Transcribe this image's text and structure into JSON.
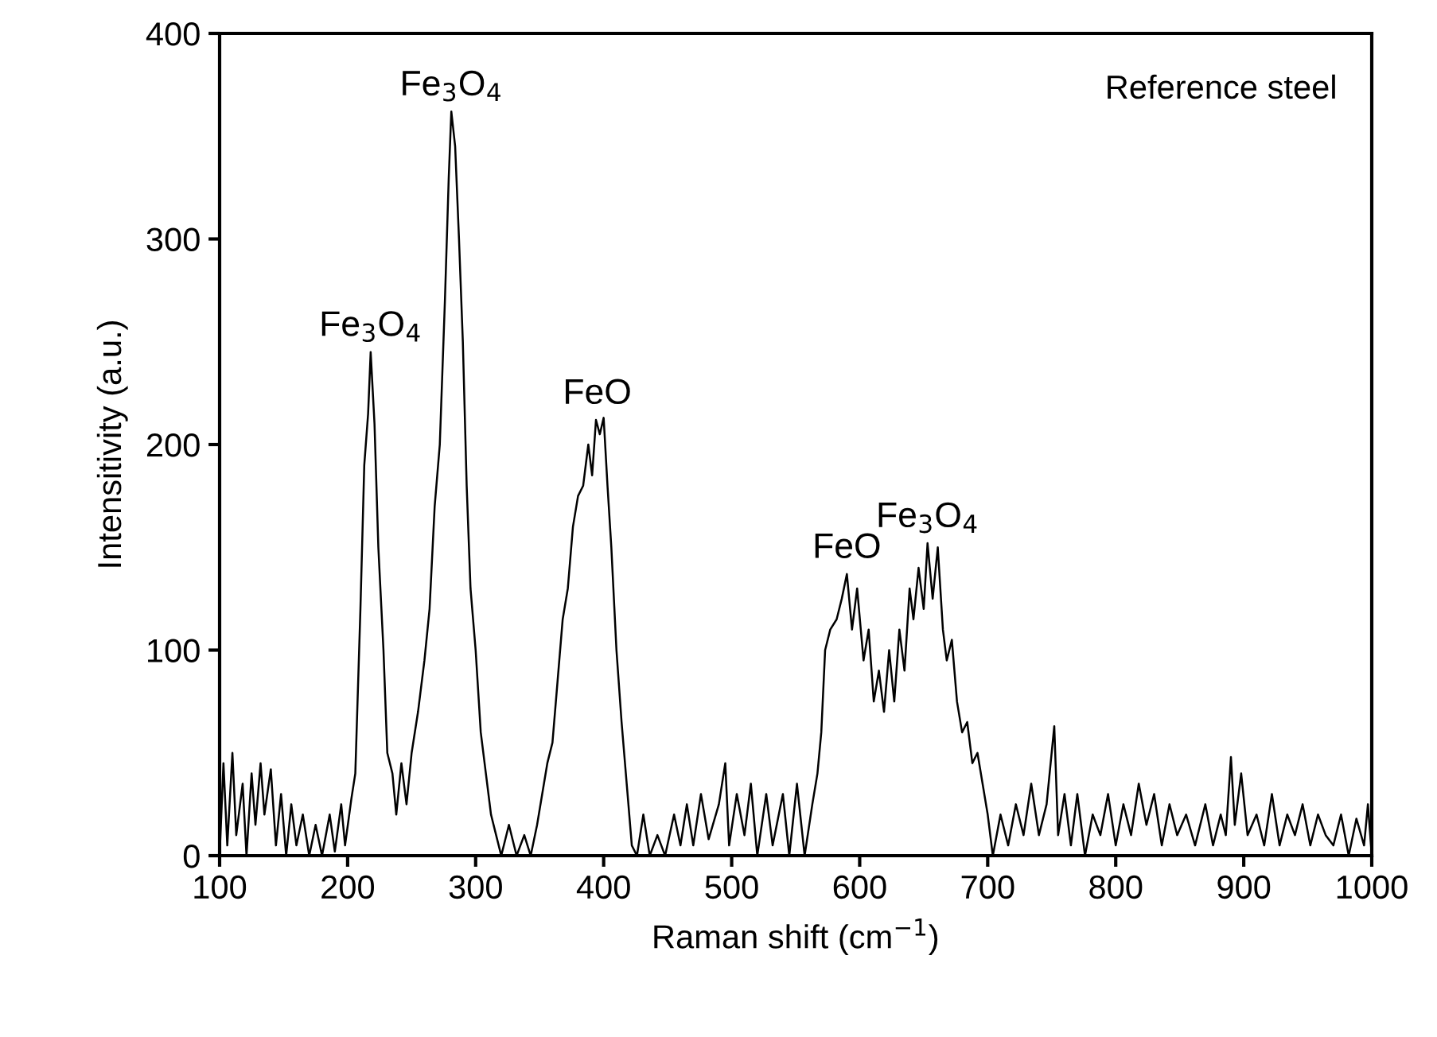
{
  "chart_data": {
    "type": "line",
    "xlabel": "Raman shift (cm$^{−1}$)",
    "ylabel": "Intensitivity (a.u.)",
    "xlim": [
      100,
      1000
    ],
    "ylim": [
      0,
      400
    ],
    "xticks": [
      100,
      200,
      300,
      400,
      500,
      600,
      700,
      800,
      900,
      1000
    ],
    "yticks": [
      0,
      100,
      200,
      300,
      400
    ],
    "grid": false,
    "legend": false,
    "marker": "none",
    "line_style": "solid",
    "annotations": [
      {
        "text": "Fe$_{3}$O$_{4}$",
        "x": 218,
        "y": 245
      },
      {
        "text": "Fe$_{3}$O$_{4}$",
        "x": 281,
        "y": 362
      },
      {
        "text": "FeO",
        "x": 395,
        "y": 212
      },
      {
        "text": "FeO",
        "x": 590,
        "y": 137
      },
      {
        "text": "Fe$_{3}$O$_{4}$",
        "x": 653,
        "y": 152
      },
      "Reference steel"
    ],
    "series": [
      {
        "color": "#000000",
        "x": [
          100,
          103,
          106,
          110,
          113,
          118,
          121,
          125,
          128,
          132,
          135,
          140,
          144,
          148,
          152,
          156,
          160,
          165,
          170,
          175,
          180,
          186,
          190,
          195,
          198,
          203,
          206,
          210,
          213,
          216,
          218,
          221,
          224,
          228,
          231,
          235,
          238,
          242,
          246,
          250,
          255,
          260,
          264,
          268,
          272,
          276,
          279,
          281,
          284,
          287,
          290,
          293,
          296,
          300,
          304,
          308,
          312,
          316,
          320,
          326,
          332,
          338,
          343,
          348,
          352,
          356,
          360,
          364,
          368,
          372,
          376,
          380,
          384,
          388,
          391,
          394,
          397,
          400,
          403,
          406,
          410,
          414,
          418,
          422,
          426,
          431,
          436,
          442,
          448,
          455,
          460,
          465,
          470,
          476,
          482,
          490,
          495,
          498,
          504,
          510,
          515,
          520,
          527,
          532,
          540,
          545,
          551,
          557,
          563,
          567,
          570,
          573,
          577,
          582,
          586,
          590,
          594,
          598,
          603,
          607,
          611,
          615,
          619,
          623,
          627,
          631,
          635,
          639,
          642,
          646,
          650,
          653,
          657,
          661,
          665,
          668,
          672,
          676,
          680,
          684,
          688,
          692,
          696,
          700,
          704,
          710,
          716,
          722,
          728,
          734,
          740,
          746,
          752,
          755,
          760,
          765,
          770,
          776,
          782,
          788,
          794,
          800,
          806,
          812,
          818,
          824,
          830,
          836,
          842,
          848,
          855,
          862,
          870,
          876,
          882,
          886,
          890,
          893,
          898,
          903,
          910,
          916,
          922,
          928,
          934,
          940,
          946,
          952,
          958,
          964,
          970,
          976,
          982,
          988,
          994,
          997,
          1000
        ],
        "values": [
          0,
          45,
          5,
          50,
          10,
          35,
          0,
          40,
          15,
          45,
          20,
          42,
          5,
          30,
          0,
          25,
          5,
          20,
          0,
          15,
          0,
          20,
          2,
          25,
          5,
          28,
          40,
          120,
          190,
          215,
          245,
          210,
          150,
          100,
          50,
          40,
          20,
          45,
          25,
          50,
          70,
          95,
          120,
          170,
          200,
          270,
          330,
          362,
          345,
          300,
          250,
          180,
          130,
          100,
          60,
          40,
          20,
          10,
          0,
          15,
          0,
          10,
          0,
          15,
          30,
          45,
          55,
          85,
          115,
          130,
          160,
          175,
          180,
          200,
          185,
          212,
          205,
          213,
          180,
          150,
          100,
          65,
          35,
          5,
          0,
          20,
          0,
          10,
          0,
          20,
          5,
          25,
          5,
          30,
          8,
          25,
          45,
          5,
          30,
          10,
          35,
          0,
          30,
          5,
          30,
          0,
          35,
          0,
          25,
          40,
          60,
          100,
          110,
          115,
          125,
          137,
          110,
          130,
          95,
          110,
          75,
          90,
          70,
          100,
          75,
          110,
          90,
          130,
          115,
          140,
          120,
          152,
          125,
          150,
          110,
          95,
          105,
          75,
          60,
          65,
          45,
          50,
          35,
          20,
          0,
          20,
          5,
          25,
          10,
          35,
          10,
          25,
          63,
          10,
          30,
          5,
          30,
          0,
          20,
          10,
          30,
          5,
          25,
          10,
          35,
          15,
          30,
          5,
          25,
          10,
          20,
          5,
          25,
          5,
          20,
          10,
          48,
          15,
          40,
          10,
          20,
          5,
          30,
          5,
          20,
          10,
          25,
          5,
          20,
          10,
          5,
          20,
          0,
          18,
          5,
          25,
          0
        ]
      }
    ]
  }
}
